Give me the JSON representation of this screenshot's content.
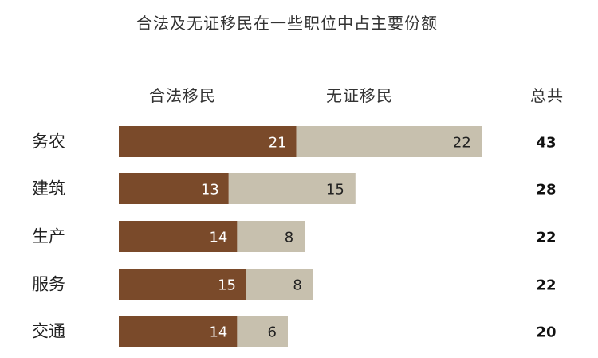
{
  "chart_data": {
    "type": "bar",
    "orientation": "horizontal",
    "stacked": true,
    "title": "合法及无证移民在一些职位中占主要份额",
    "categories": [
      "务农",
      "建筑",
      "生产",
      "服务",
      "交通"
    ],
    "series": [
      {
        "name": "合法移民",
        "values": [
          21,
          13,
          14,
          15,
          14
        ],
        "color": "#7a4a2a"
      },
      {
        "name": "无证移民",
        "values": [
          22,
          15,
          8,
          8,
          6
        ],
        "color": "#c7c0ae"
      }
    ],
    "totals_header": "总共",
    "totals": [
      43,
      28,
      22,
      22,
      20
    ],
    "grid": false,
    "legend": "top"
  }
}
